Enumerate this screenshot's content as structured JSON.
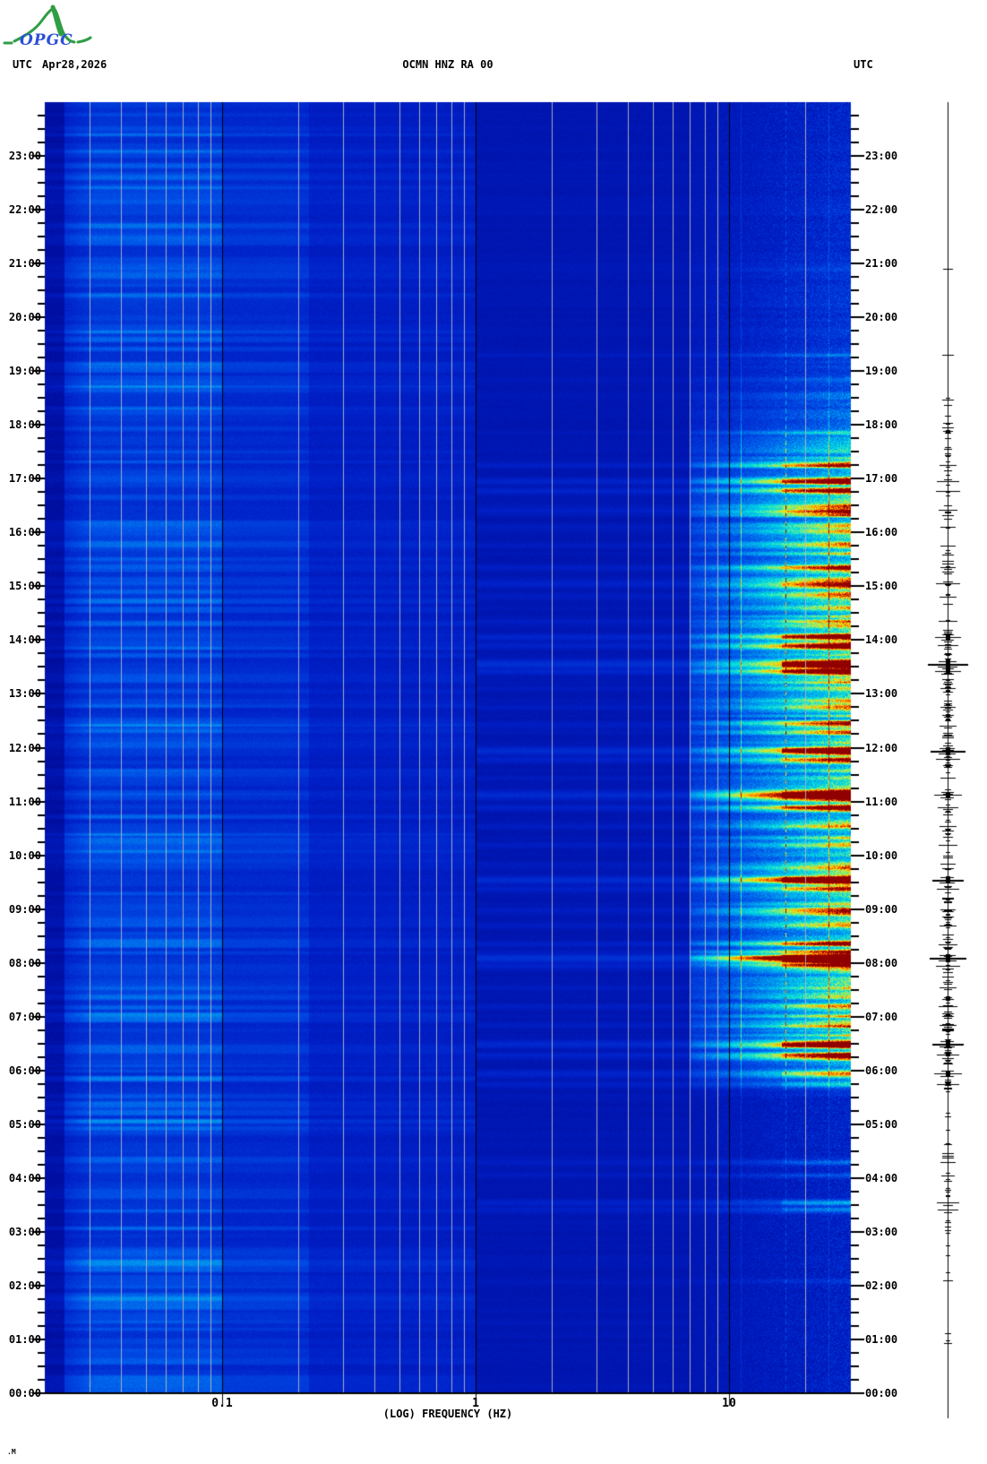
{
  "header": {
    "utc_left": "UTC",
    "date": "Apr28,2026",
    "title": "OCMN HNZ RA 00",
    "utc_right": "UTC"
  },
  "logo": {
    "text": "OPGC",
    "curve_color": "#2f9e44",
    "text_color": "#2b4fd7"
  },
  "footer": {
    "mark": ".M"
  },
  "chart_data": {
    "type": "heatmap",
    "subtype": "seismic-spectrogram",
    "title": "OCMN HNZ RA 00",
    "date": "Apr28,2026",
    "timezone": "UTC",
    "xlabel": "(LOG) FREQUENCY (HZ)",
    "x_scale": "log10",
    "freq_range_hz": [
      0.02,
      30
    ],
    "time_range": [
      "00:00",
      "24:00"
    ],
    "x_major_ticks": [
      {
        "hz": 0.1,
        "label": "0.1"
      },
      {
        "hz": 1,
        "label": "1"
      },
      {
        "hz": 10,
        "label": "10"
      }
    ],
    "x_minor_gridlines_hz": [
      0.03,
      0.04,
      0.05,
      0.06,
      0.07,
      0.08,
      0.09,
      0.2,
      0.3,
      0.4,
      0.5,
      0.6,
      0.7,
      0.8,
      0.9,
      2,
      3,
      4,
      5,
      6,
      7,
      8,
      9,
      20
    ],
    "hour_labels": [
      "23:00",
      "22:00",
      "21:00",
      "20:00",
      "19:00",
      "18:00",
      "17:00",
      "16:00",
      "15:00",
      "14:00",
      "13:00",
      "12:00",
      "11:00",
      "10:00",
      "09:00",
      "08:00",
      "07:00",
      "06:00",
      "05:00",
      "04:00",
      "03:00",
      "02:00",
      "01:00",
      "00:00"
    ],
    "minor_tick_minutes": 15,
    "palette_stops": [
      [
        0.0,
        "#000080"
      ],
      [
        0.15,
        "#0020c8"
      ],
      [
        0.3,
        "#0050e8"
      ],
      [
        0.45,
        "#00a0f0"
      ],
      [
        0.57,
        "#00e0e0"
      ],
      [
        0.68,
        "#80f080"
      ],
      [
        0.78,
        "#ffe000"
      ],
      [
        0.88,
        "#ff6000"
      ],
      [
        1.0,
        "#900000"
      ]
    ],
    "narrowband_noise_lines_hz": [
      {
        "hz": 11.1,
        "style": "soft"
      },
      {
        "hz": 16.7,
        "style": "dashed"
      },
      {
        "hz": 24.7,
        "style": "soft"
      }
    ],
    "day_activity_breakpoints": [
      [
        0,
        0.03
      ],
      [
        3.2,
        0.03
      ],
      [
        5.5,
        0.05
      ],
      [
        5.85,
        0.55
      ],
      [
        6.25,
        1.0
      ],
      [
        17.0,
        1.0
      ],
      [
        17.6,
        0.8
      ],
      [
        18.4,
        0.38
      ],
      [
        19.2,
        0.2
      ],
      [
        21.0,
        0.12
      ],
      [
        22.8,
        0.07
      ],
      [
        24,
        0.06
      ]
    ],
    "hf_events": [
      {
        "t": 17.25,
        "s": 0.35
      },
      {
        "t": 16.95,
        "s": 0.5
      },
      {
        "t": 16.78,
        "s": 0.55
      },
      {
        "t": 16.42,
        "s": 0.4
      },
      {
        "t": 16.1,
        "s": 0.3
      },
      {
        "t": 15.75,
        "s": 0.3
      },
      {
        "t": 15.35,
        "s": 0.3
      },
      {
        "t": 15.05,
        "s": 0.55
      },
      {
        "t": 14.8,
        "s": 0.35
      },
      {
        "t": 14.35,
        "s": 0.4
      },
      {
        "t": 14.05,
        "s": 0.6
      },
      {
        "t": 13.9,
        "s": 0.45
      },
      {
        "t": 13.55,
        "s": 1.0
      },
      {
        "t": 13.42,
        "s": 0.6
      },
      {
        "t": 13.1,
        "s": 0.3
      },
      {
        "t": 12.75,
        "s": 0.3
      },
      {
        "t": 12.4,
        "s": 0.35
      },
      {
        "t": 11.95,
        "s": 0.85
      },
      {
        "t": 11.8,
        "s": 0.55
      },
      {
        "t": 11.45,
        "s": 0.3
      },
      {
        "t": 11.12,
        "s": 0.65
      },
      {
        "t": 10.9,
        "s": 0.45
      },
      {
        "t": 10.55,
        "s": 0.35
      },
      {
        "t": 10.2,
        "s": 0.4
      },
      {
        "t": 9.85,
        "s": 0.3
      },
      {
        "t": 9.55,
        "s": 0.75
      },
      {
        "t": 9.38,
        "s": 0.5
      },
      {
        "t": 9.0,
        "s": 0.3
      },
      {
        "t": 8.7,
        "s": 0.35
      },
      {
        "t": 8.35,
        "s": 0.4
      },
      {
        "t": 8.1,
        "s": 0.9
      },
      {
        "t": 7.95,
        "s": 0.55
      },
      {
        "t": 7.55,
        "s": 0.35
      },
      {
        "t": 7.2,
        "s": 0.4
      },
      {
        "t": 6.85,
        "s": 0.35
      },
      {
        "t": 6.5,
        "s": 0.75
      },
      {
        "t": 6.3,
        "s": 0.5
      },
      {
        "t": 5.95,
        "s": 0.65
      },
      {
        "t": 5.75,
        "s": 0.5
      },
      {
        "t": 4.3,
        "s": 0.3
      },
      {
        "t": 4.05,
        "s": 0.25
      },
      {
        "t": 3.55,
        "s": 0.5
      },
      {
        "t": 3.42,
        "s": 0.45
      },
      {
        "t": 2.1,
        "s": 0.15
      },
      {
        "t": 20.9,
        "s": 0.15
      },
      {
        "t": 19.3,
        "s": 0.2
      }
    ],
    "lf_bright_rows": [
      {
        "t": 19.07,
        "s": 0.7
      },
      {
        "t": 18.72,
        "s": 1.0
      },
      {
        "t": 17.5,
        "s": 0.5
      },
      {
        "t": 15.3,
        "s": 0.5
      },
      {
        "t": 12.43,
        "s": 1.0
      },
      {
        "t": 11.15,
        "s": 0.6
      },
      {
        "t": 10.4,
        "s": 0.9
      },
      {
        "t": 9.3,
        "s": 0.5
      },
      {
        "t": 8.2,
        "s": 0.5
      },
      {
        "t": 6.1,
        "s": 0.5
      },
      {
        "t": 4.85,
        "s": 0.4
      },
      {
        "t": 3.4,
        "s": 0.6
      },
      {
        "t": 1.6,
        "s": 0.7
      },
      {
        "t": 1.2,
        "s": 0.5
      },
      {
        "t": 22.45,
        "s": 0.5
      },
      {
        "t": 20.9,
        "s": 0.4
      }
    ],
    "seed": 42
  },
  "side_trace": {
    "dense_windows": [
      {
        "hours": [
          4.4,
          17.6
        ],
        "count": 250
      },
      {
        "hours": [
          2.85,
          4.4
        ],
        "count": 22
      },
      {
        "hours": [
          17.6,
          18.6
        ],
        "count": 14
      },
      {
        "hours": [
          0.3,
          2.8
        ],
        "count": 6
      }
    ]
  }
}
